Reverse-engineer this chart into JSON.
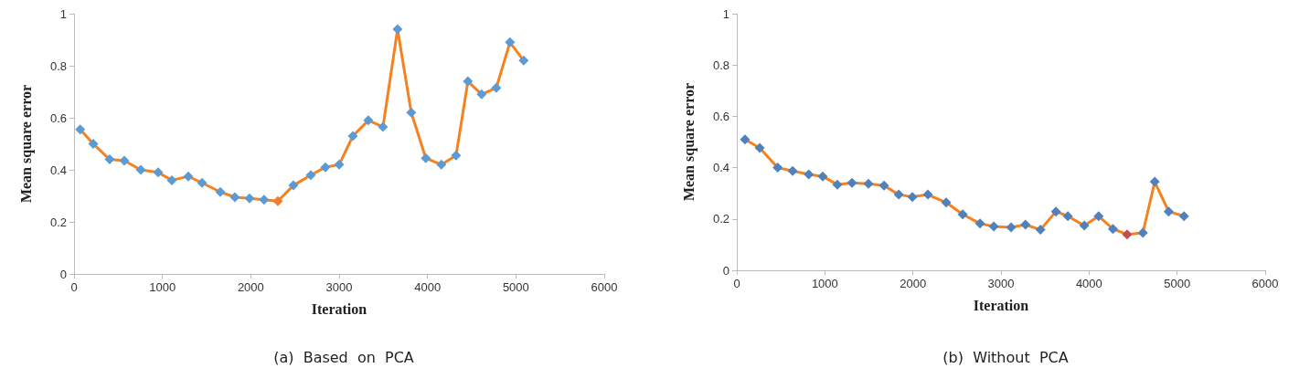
{
  "chart_data": [
    {
      "type": "line",
      "title": "(a)  Based  on  PCA",
      "xlabel": "Iteration",
      "ylabel": "Mean square error",
      "xlim": [
        0,
        6000
      ],
      "xticks": [
        0,
        1000,
        2000,
        3000,
        4000,
        5000,
        6000
      ],
      "ylim": [
        0,
        1
      ],
      "yticks": [
        0,
        0.2,
        0.4,
        0.6,
        0.8,
        1
      ],
      "marker": "diamond",
      "line_style": "solid",
      "series": [
        {
          "color": "#f5821f",
          "x": [
            70,
            217,
            403,
            569,
            755,
            952,
            1107,
            1293,
            1448,
            1655,
            1820,
            1986,
            2150,
            2306,
            2482,
            2679,
            2844,
            3000,
            3155,
            3330,
            3496,
            3661,
            3816,
            3981,
            4157,
            4323,
            4457,
            4612,
            4778,
            4933,
            5088
          ],
          "values": [
            0.555,
            0.5,
            0.44,
            0.435,
            0.4,
            0.39,
            0.36,
            0.375,
            0.35,
            0.315,
            0.295,
            0.29,
            0.285,
            0.28,
            0.34,
            0.38,
            0.41,
            0.42,
            0.53,
            0.59,
            0.565,
            0.94,
            0.62,
            0.445,
            0.42,
            0.455,
            0.74,
            0.69,
            0.715,
            0.89,
            0.82
          ],
          "colors": [
            "#5b9bd5",
            "#5b9bd5",
            "#5b9bd5",
            "#5b9bd5",
            "#5b9bd5",
            "#5b9bd5",
            "#5b9bd5",
            "#5b9bd5",
            "#5b9bd5",
            "#5b9bd5",
            "#5b9bd5",
            "#5b9bd5",
            "#5b9bd5",
            "#ed7d31",
            "#5b9bd5",
            "#5b9bd5",
            "#5b9bd5",
            "#5b9bd5",
            "#5b9bd5",
            "#5b9bd5",
            "#5b9bd5",
            "#5b9bd5",
            "#5b9bd5",
            "#5b9bd5",
            "#5b9bd5",
            "#5b9bd5",
            "#5b9bd5",
            "#5b9bd5",
            "#5b9bd5",
            "#5b9bd5",
            "#5b9bd5"
          ]
        }
      ]
    },
    {
      "type": "line",
      "title": "(b)  Without  PCA",
      "xlabel": "Iteration",
      "ylabel": "Mean square error",
      "xlim": [
        0,
        6000
      ],
      "xticks": [
        0,
        1000,
        2000,
        3000,
        4000,
        5000,
        6000
      ],
      "ylim": [
        0,
        1
      ],
      "yticks": [
        0,
        0.2,
        0.4,
        0.6,
        0.8,
        1
      ],
      "marker": "diamond",
      "line_style": "solid",
      "series": [
        {
          "color": "#f5821f",
          "x": [
            93,
            260,
            464,
            634,
            817,
            976,
            1142,
            1308,
            1495,
            1672,
            1839,
            1994,
            2170,
            2378,
            2565,
            2762,
            2918,
            3115,
            3278,
            3448,
            3624,
            3759,
            3946,
            4109,
            4271,
            4432,
            4611,
            4746,
            4904,
            5078
          ],
          "values": [
            0.51,
            0.477,
            0.4,
            0.387,
            0.374,
            0.366,
            0.334,
            0.341,
            0.337,
            0.33,
            0.295,
            0.286,
            0.295,
            0.264,
            0.218,
            0.182,
            0.171,
            0.167,
            0.178,
            0.158,
            0.229,
            0.211,
            0.174,
            0.211,
            0.161,
            0.14,
            0.146,
            0.345,
            0.229,
            0.211
          ],
          "colors": [
            "#4f81bd",
            "#4f81bd",
            "#4f81bd",
            "#4f81bd",
            "#4f81bd",
            "#4f81bd",
            "#4f81bd",
            "#4f81bd",
            "#4f81bd",
            "#4f81bd",
            "#4f81bd",
            "#4f81bd",
            "#4f81bd",
            "#4f81bd",
            "#4f81bd",
            "#4f81bd",
            "#4f81bd",
            "#4f81bd",
            "#4f81bd",
            "#4f81bd",
            "#4f81bd",
            "#4f81bd",
            "#4f81bd",
            "#4f81bd",
            "#4f81bd",
            "#c0504d",
            "#4f81bd",
            "#4f81bd",
            "#4f81bd",
            "#4f81bd"
          ]
        }
      ]
    }
  ]
}
